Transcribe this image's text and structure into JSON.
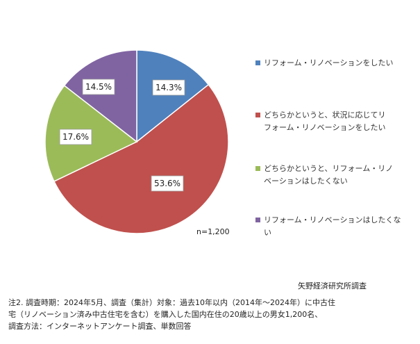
{
  "chart_data": {
    "type": "pie",
    "categories": [
      "リフォーム・リノベーションをしたい",
      "どちらかというと、状況に応じてリフォーム・リノベーションをしたい",
      "どちらかというと、リフォーム・リノベーションはしたくない",
      "リフォーム・リノベーションはしたくない"
    ],
    "values": [
      14.3,
      53.6,
      17.6,
      14.5
    ],
    "value_labels": [
      "14.3%",
      "53.6%",
      "17.6%",
      "14.5%"
    ],
    "colors": [
      "#4F81BD",
      "#C0504D",
      "#9BBB59",
      "#8064A2"
    ],
    "legend_placement": "right",
    "start_angle": "top-clockwise"
  },
  "legend": [
    {
      "lines": [
        "リフォーム・リノベーションをしたい"
      ]
    },
    {
      "lines": [
        "どちらかというと、状況に応じてリ",
        "フォーム・リノベーションをしたい"
      ]
    },
    {
      "lines": [
        "どちらかというと、リフォーム・リノ",
        "ベーションはしたくない"
      ]
    },
    {
      "lines": [
        "リフォーム・リノベーションはしたくな",
        "い"
      ]
    }
  ],
  "sample_size": "n=1,200",
  "source": "矢野経済研究所調査",
  "note_lines": [
    "注2. 調査時期：2024年5月、調査（集計）対象：過去10年以内（2014年～2024年）に中古住",
    "宅（リノベーション済み中古住宅を含む）を購入した国内在住の20歳以上の男女1,200名、",
    "調査方法：インターネットアンケート調査、単数回答"
  ]
}
